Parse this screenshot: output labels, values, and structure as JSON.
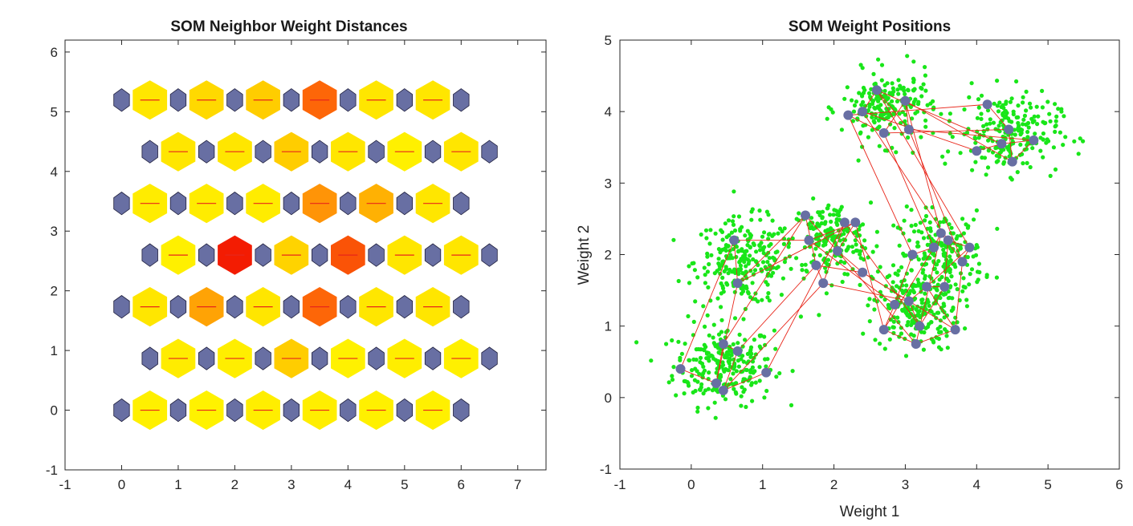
{
  "chart_data": [
    {
      "type": "heatmap",
      "title": "SOM Neighbor Weight Distances",
      "xlim": [
        -1,
        7.5
      ],
      "ylim": [
        -1,
        6.2
      ],
      "x_ticks": [
        "-1",
        "0",
        "1",
        "2",
        "3",
        "4",
        "5",
        "6",
        "7"
      ],
      "y_ticks": [
        "-1",
        "0",
        "1",
        "2",
        "3",
        "4",
        "5",
        "6"
      ],
      "neuron_color": "#686fa3",
      "distance_line_color": "#e8261a",
      "grid_rows": 7,
      "grid_cols": 6,
      "distance_levels": [
        [
          0.02,
          0.02,
          0.0,
          0.02,
          0.03,
          0.04,
          0.03,
          0.02,
          0.02,
          0.02,
          0.02
        ],
        [
          0.05,
          0.03,
          0.03,
          0.1,
          0.3,
          0.75,
          0.01,
          0.02,
          0.03,
          0.05,
          0.02
        ],
        [
          0.1,
          0.35,
          0.45,
          0.1,
          0.1,
          0.45,
          0.65,
          0.65,
          0.1,
          0.05,
          0.1
        ],
        [
          0.02,
          0.7,
          0.85,
          0.9,
          0.25,
          0.1,
          0.7,
          0.75,
          0.1,
          0.2,
          0.1
        ],
        [
          0.05,
          0.1,
          0.05,
          0.1,
          0.05,
          0.1,
          0.5,
          0.35,
          0.4,
          0.05,
          0.1
        ],
        [
          0.1,
          0.05,
          0.1,
          0.1,
          0.3,
          0.7,
          0.1,
          0.05,
          0.02,
          0.05,
          0.1
        ],
        [
          0.1,
          0.1,
          0.2,
          0.1,
          0.3,
          0.15,
          0.65,
          0.2,
          0.1,
          0.1,
          0.1
        ]
      ]
    },
    {
      "type": "scatter",
      "title": "SOM Weight Positions",
      "xlabel": "Weight 1",
      "ylabel": "Weight 2",
      "xlim": [
        -1,
        6
      ],
      "ylim": [
        -1,
        5
      ],
      "x_ticks": [
        "-1",
        "0",
        "1",
        "2",
        "3",
        "4",
        "5",
        "6"
      ],
      "y_ticks": [
        "-1",
        "0",
        "1",
        "2",
        "3",
        "4",
        "5"
      ],
      "data_color": "#19e619",
      "neuron_color": "#686fa3",
      "link_color": "#e8261a",
      "clusters": [
        {
          "center": [
            0.45,
            0.45
          ],
          "spread": [
            0.35,
            0.28
          ],
          "count": 250
        },
        {
          "center": [
            0.75,
            1.9
          ],
          "spread": [
            0.35,
            0.3
          ],
          "count": 250
        },
        {
          "center": [
            1.95,
            2.2
          ],
          "spread": [
            0.28,
            0.26
          ],
          "count": 190
        },
        {
          "center": [
            3.15,
            1.25
          ],
          "spread": [
            0.3,
            0.3
          ],
          "count": 220
        },
        {
          "center": [
            3.5,
            2.0
          ],
          "spread": [
            0.3,
            0.3
          ],
          "count": 200
        },
        {
          "center": [
            2.75,
            4.05
          ],
          "spread": [
            0.32,
            0.25
          ],
          "count": 210
        },
        {
          "center": [
            4.45,
            3.7
          ],
          "spread": [
            0.35,
            0.28
          ],
          "count": 230
        }
      ],
      "neurons": [
        [
          [
            -0.15,
            0.4
          ],
          [
            0.35,
            0.2
          ],
          [
            0.45,
            0.75
          ],
          [
            0.65,
            0.65
          ],
          [
            0.45,
            0.1
          ],
          [
            1.05,
            0.35
          ]
        ],
        [
          [
            0.6,
            2.2
          ],
          [
            0.65,
            1.6
          ],
          [
            1.6,
            2.55
          ],
          [
            1.75,
            1.85
          ],
          [
            1.85,
            1.6
          ],
          [
            2.15,
            2.45
          ]
        ],
        [
          [
            1.65,
            2.2
          ],
          [
            2.3,
            2.45
          ],
          [
            2.05,
            2.05
          ],
          [
            2.4,
            1.75
          ],
          [
            3.05,
            1.35
          ],
          [
            3.2,
            1.0
          ]
        ],
        [
          [
            2.85,
            1.3
          ],
          [
            2.7,
            0.95
          ],
          [
            3.15,
            0.75
          ],
          [
            3.7,
            0.95
          ],
          [
            3.3,
            1.55
          ],
          [
            3.55,
            1.55
          ]
        ],
        [
          [
            3.1,
            2.0
          ],
          [
            3.4,
            2.1
          ],
          [
            3.5,
            2.3
          ],
          [
            3.8,
            1.9
          ],
          [
            3.9,
            2.1
          ],
          [
            3.6,
            2.2
          ]
        ],
        [
          [
            2.2,
            3.95
          ],
          [
            2.7,
            3.7
          ],
          [
            3.0,
            4.15
          ],
          [
            3.05,
            3.75
          ],
          [
            2.6,
            4.3
          ],
          [
            2.4,
            4.0
          ]
        ],
        [
          [
            4.15,
            4.1
          ],
          [
            4.45,
            3.75
          ],
          [
            4.5,
            3.3
          ],
          [
            4.8,
            3.6
          ],
          [
            4.35,
            3.55
          ],
          [
            4.0,
            3.45
          ]
        ]
      ]
    }
  ]
}
